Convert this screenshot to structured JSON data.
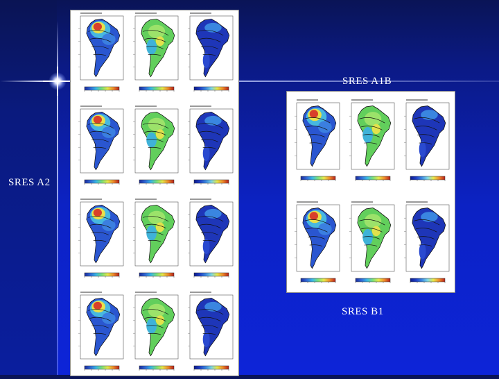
{
  "slide": {
    "labels": {
      "a1b": "SRES A1B",
      "a2": "SRES A2",
      "b1": "SRES B1"
    }
  },
  "left_panel": {
    "rows": 4,
    "columns": 3
  },
  "right_panel": {
    "title_top": "SRES A1B",
    "rows": 2,
    "columns": 3
  },
  "colors": {
    "background_top": "#0a1456",
    "background_bottom": "#0d24d8",
    "map_blue": "#1b2fa8",
    "map_green": "#5fcf5a",
    "map_red": "#d8402a",
    "map_yellow": "#e8e04a"
  }
}
